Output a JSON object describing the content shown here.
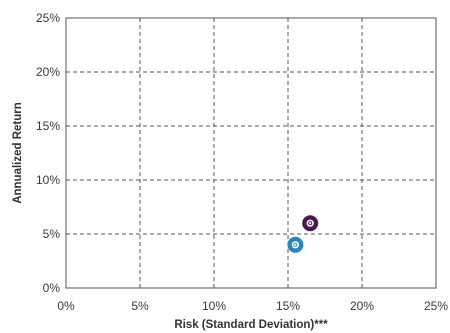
{
  "chart_data": {
    "type": "scatter",
    "title": "",
    "xlabel": "Risk (Standard Deviation)***",
    "ylabel": "Annualized Return",
    "xlim": [
      0,
      25
    ],
    "ylim": [
      0,
      25
    ],
    "x_ticks": [
      "0%",
      "5%",
      "10%",
      "15%",
      "20%",
      "25%"
    ],
    "y_ticks": [
      "0%",
      "5%",
      "10%",
      "15%",
      "20%",
      "25%"
    ],
    "grid": "dashed",
    "legend": "none",
    "series": [
      {
        "color": "#4a1a4e",
        "points": [
          {
            "x": 16.5,
            "y": 6.0
          }
        ]
      },
      {
        "color": "#2e86b8",
        "points": [
          {
            "x": 15.5,
            "y": 4.0
          }
        ]
      }
    ]
  }
}
